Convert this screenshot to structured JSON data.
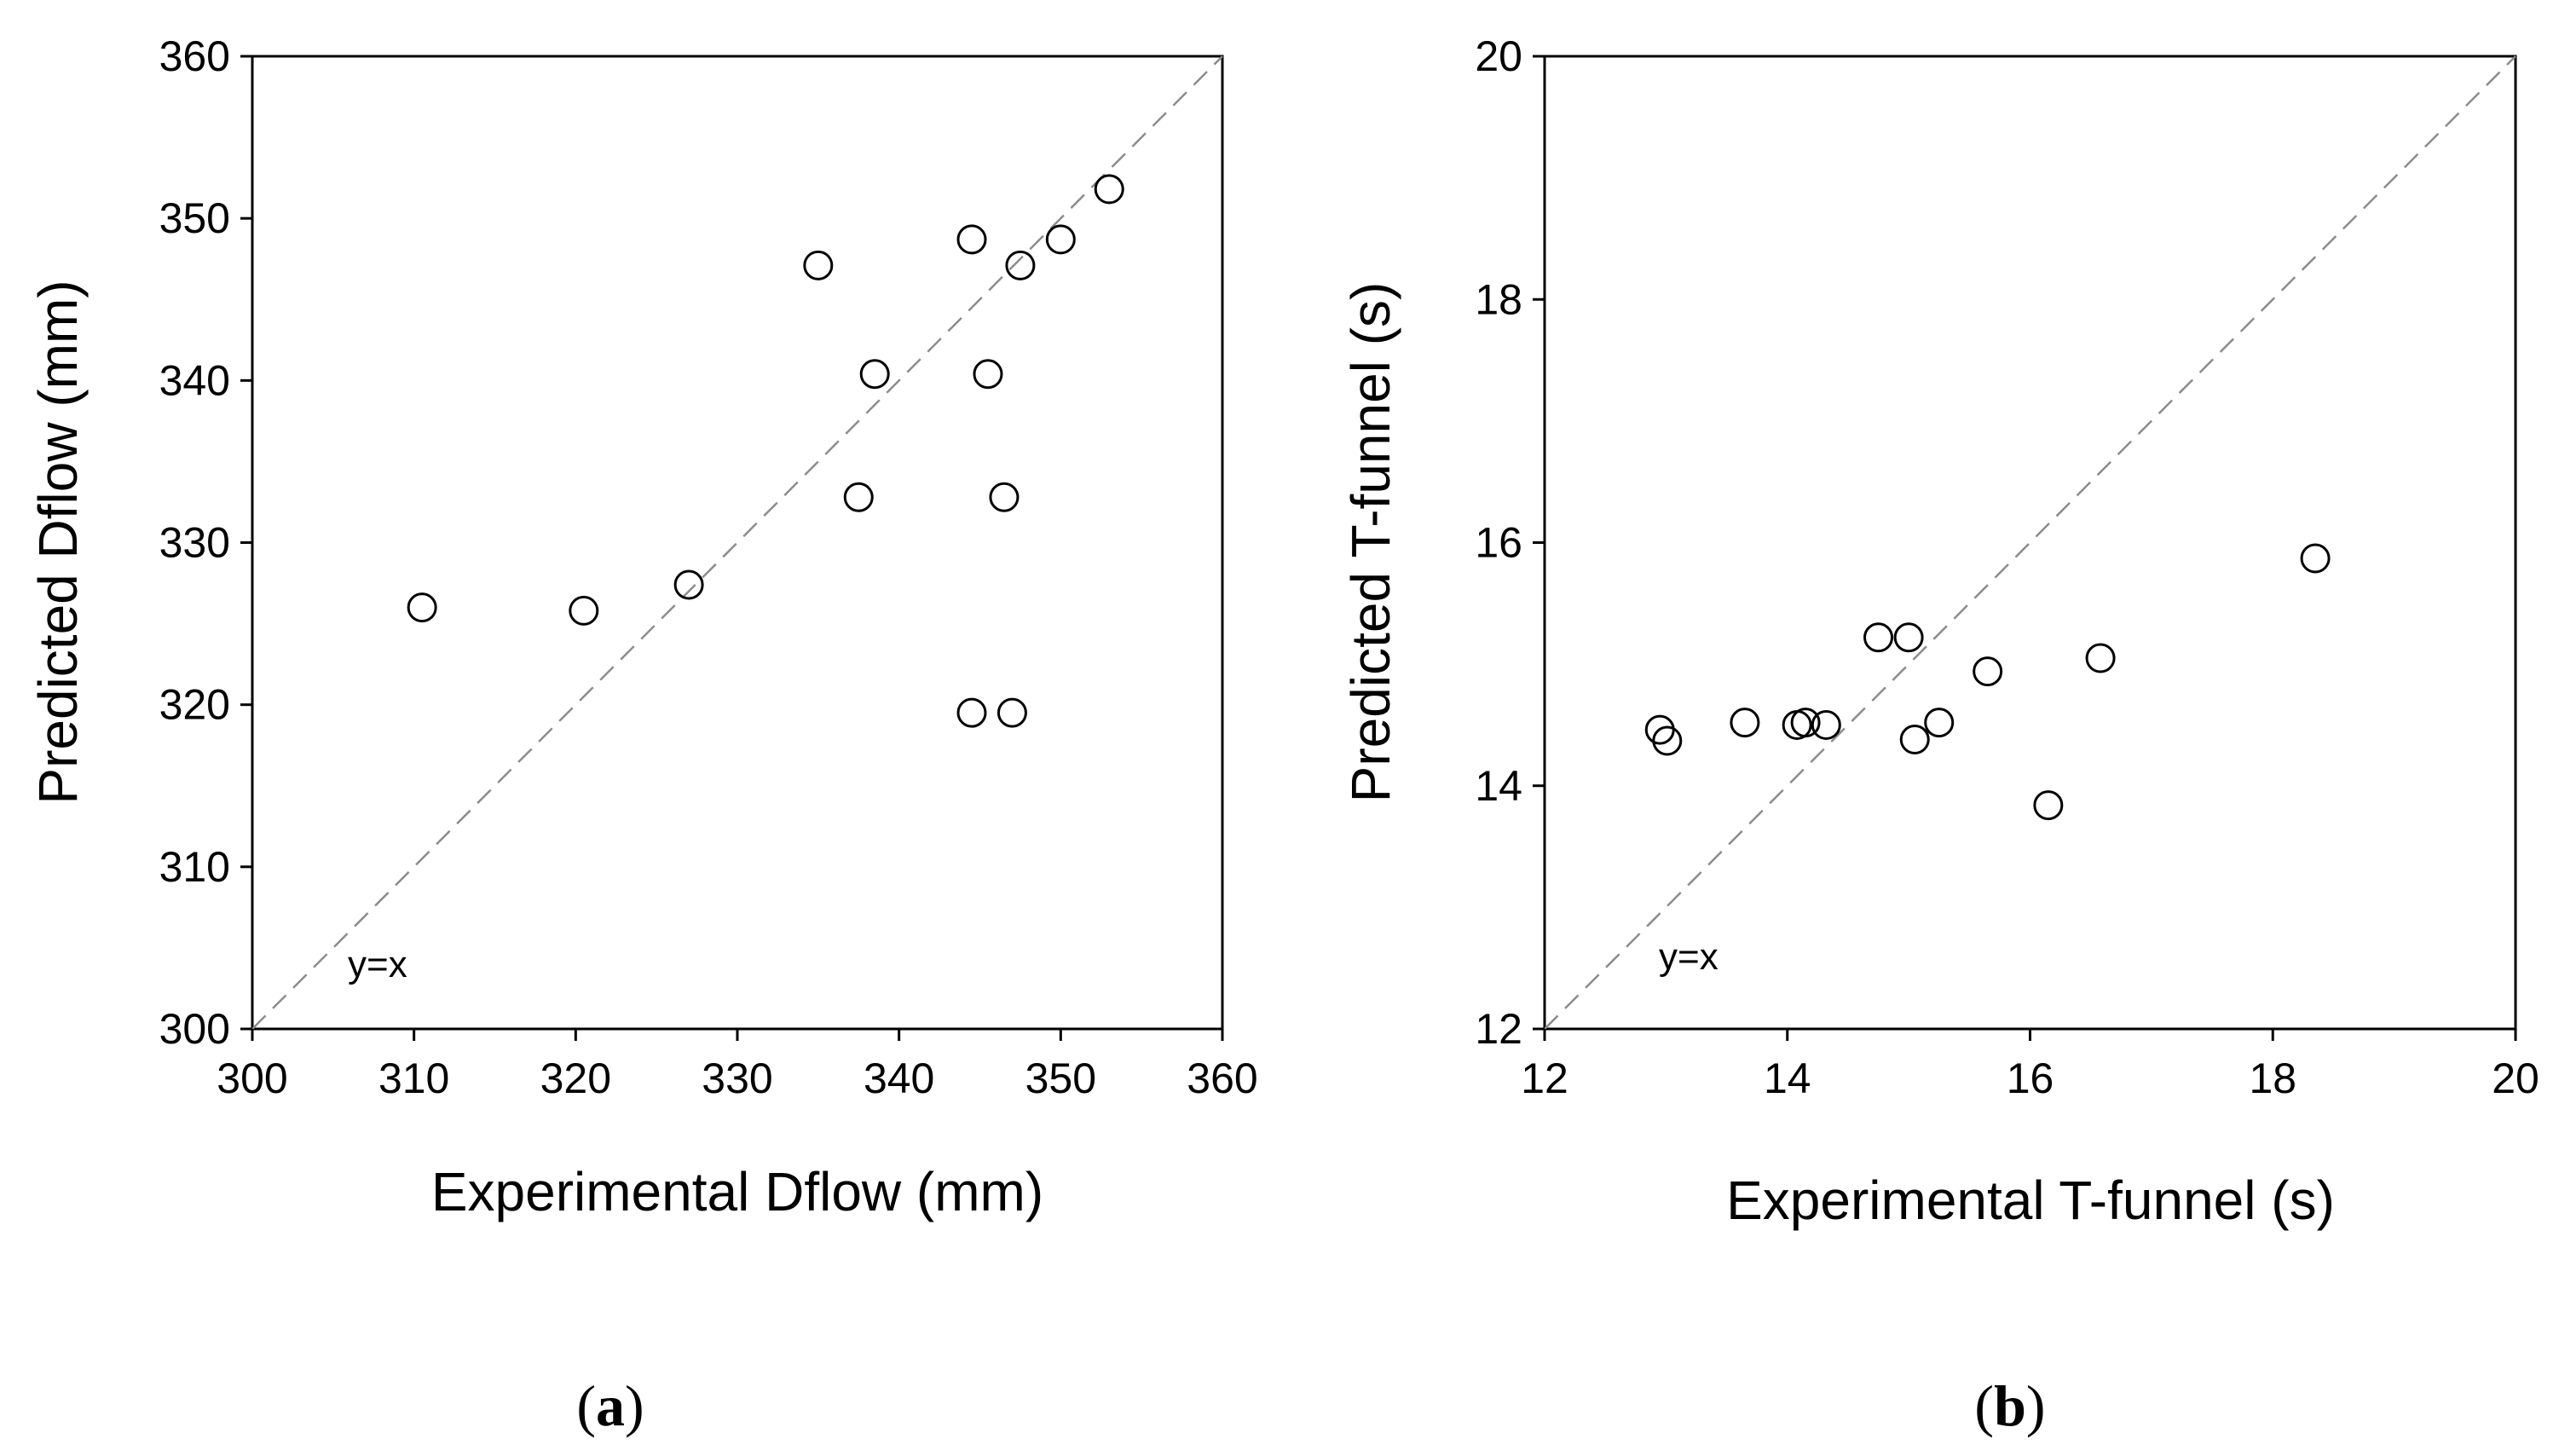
{
  "chart_data": [
    {
      "type": "scatter",
      "panel_label": "a",
      "xlabel": "Experimental Dflow (mm)",
      "ylabel": "Predicted Dflow (mm)",
      "xlim": [
        300,
        360
      ],
      "ylim": [
        300,
        360
      ],
      "xticks": [
        "300",
        "310",
        "320",
        "330",
        "340",
        "350",
        "360"
      ],
      "yticks": [
        "300",
        "310",
        "320",
        "330",
        "340",
        "350",
        "360"
      ],
      "reference_line": "y=x",
      "annotation": "y=x",
      "points": [
        {
          "x": 310.5,
          "y": 326.0
        },
        {
          "x": 320.5,
          "y": 325.8
        },
        {
          "x": 327.0,
          "y": 327.4
        },
        {
          "x": 335.0,
          "y": 347.1
        },
        {
          "x": 337.5,
          "y": 332.8
        },
        {
          "x": 338.5,
          "y": 340.4
        },
        {
          "x": 344.5,
          "y": 348.7
        },
        {
          "x": 344.5,
          "y": 319.5
        },
        {
          "x": 345.5,
          "y": 340.4
        },
        {
          "x": 346.5,
          "y": 332.8
        },
        {
          "x": 347.0,
          "y": 319.5
        },
        {
          "x": 347.5,
          "y": 347.1
        },
        {
          "x": 350.0,
          "y": 348.7
        },
        {
          "x": 353.0,
          "y": 351.8
        }
      ]
    },
    {
      "type": "scatter",
      "panel_label": "b",
      "xlabel": "Experimental T-funnel (s)",
      "ylabel": "Predicted T-funnel (s)",
      "xlim": [
        12,
        20
      ],
      "ylim": [
        12,
        20
      ],
      "xticks": [
        "12",
        "14",
        "16",
        "18",
        "20"
      ],
      "yticks": [
        "12",
        "14",
        "16",
        "18",
        "20"
      ],
      "reference_line": "y=x",
      "annotation": "y=x",
      "points": [
        {
          "x": 12.95,
          "y": 14.46
        },
        {
          "x": 13.01,
          "y": 14.37
        },
        {
          "x": 13.65,
          "y": 14.52
        },
        {
          "x": 14.08,
          "y": 14.5
        },
        {
          "x": 14.15,
          "y": 14.52
        },
        {
          "x": 14.32,
          "y": 14.5
        },
        {
          "x": 14.75,
          "y": 15.22
        },
        {
          "x": 15.0,
          "y": 15.22
        },
        {
          "x": 15.05,
          "y": 14.38
        },
        {
          "x": 15.25,
          "y": 14.52
        },
        {
          "x": 15.65,
          "y": 14.94
        },
        {
          "x": 16.15,
          "y": 13.84
        },
        {
          "x": 16.58,
          "y": 15.05
        },
        {
          "x": 18.35,
          "y": 15.87
        }
      ]
    }
  ]
}
